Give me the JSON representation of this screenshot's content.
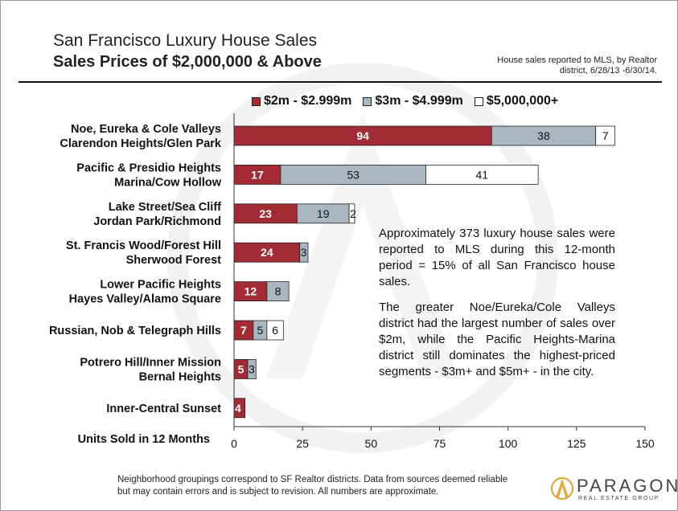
{
  "title": "San Francisco Luxury House Sales",
  "subtitle": "Sales Prices of $2,000,000 & Above",
  "note": "House sales reported to MLS, by Realtor district, 6/28/13 -6/30/14.",
  "annotation": {
    "p1": "Approximately 373 luxury house sales were reported to MLS during this 12-month period = 15% of all San Francisco house sales.",
    "p2": "The greater Noe/Eureka/Cole Valleys district had the largest number of sales over $2m, while the Pacific Heights-Marina district still dominates the highest-priced segments - $3m+ and $5m+ - in the city."
  },
  "footer": "Neighborhood groupings correspond to SF Realtor districts. Data from sources deemed reliable but may contain errors and is subject to revision. All numbers are approximate.",
  "logo": {
    "name": "PARAGON",
    "tagline": "REAL ESTATE GROUP"
  },
  "chart_data": {
    "type": "bar",
    "orientation": "horizontal",
    "stacked": true,
    "title": "San Francisco Luxury House Sales",
    "subtitle": "Sales Prices of $2,000,000 & Above",
    "xlabel": "Units Sold in 12 Months",
    "ylabel": "",
    "xlim": [
      0,
      150
    ],
    "xticks": [
      0,
      25,
      50,
      75,
      100,
      125,
      150
    ],
    "grid": false,
    "legend_position": "top",
    "categories": [
      [
        "Noe, Eureka & Cole Valleys",
        "Clarendon Heights/Glen Park"
      ],
      [
        "Pacific & Presidio Heights",
        "Marina/Cow Hollow"
      ],
      [
        "Lake Street/Sea Cliff",
        "Jordan Park/Richmond"
      ],
      [
        "St. Francis Wood/Forest Hill",
        "Sherwood Forest"
      ],
      [
        "Lower Pacific Heights",
        "Hayes Valley/Alamo Square"
      ],
      [
        "Russian, Nob & Telegraph Hills"
      ],
      [
        "Potrero Hill/Inner Mission",
        "Bernal Heights"
      ],
      [
        "Inner-Central Sunset"
      ]
    ],
    "series": [
      {
        "name": "$2m - $2.999m",
        "color": "#a22b35",
        "label_color": "#ffffff",
        "values": [
          94,
          17,
          23,
          24,
          12,
          7,
          5,
          4
        ]
      },
      {
        "name": "$3m - $4.999m",
        "color": "#a9b7c0",
        "label_color": "#111111",
        "values": [
          38,
          53,
          19,
          3,
          8,
          5,
          3,
          0
        ]
      },
      {
        "name": "$5,000,000+",
        "color": "#ffffff",
        "label_color": "#111111",
        "values": [
          7,
          41,
          2,
          0,
          0,
          6,
          0,
          0
        ]
      }
    ]
  }
}
